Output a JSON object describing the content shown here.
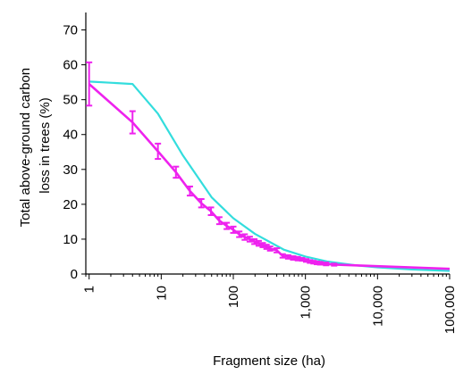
{
  "chart_data": {
    "type": "line",
    "xlabel": "Fragment size (ha)",
    "ylabel_lines": [
      "Total above-ground carbon",
      "loss in trees (%)"
    ],
    "x_scale": "log",
    "xlim": [
      0.9,
      100000
    ],
    "ylim": [
      0,
      75
    ],
    "x_ticks": [
      {
        "value": 1,
        "label": "1"
      },
      {
        "value": 10,
        "label": "10"
      },
      {
        "value": 100,
        "label": "100"
      },
      {
        "value": 1000,
        "label": "1,000"
      },
      {
        "value": 10000,
        "label": "10,000"
      },
      {
        "value": 100000,
        "label": "100,000"
      }
    ],
    "y_ticks": [
      0,
      10,
      20,
      30,
      40,
      50,
      60,
      70
    ],
    "grid": false,
    "series": [
      {
        "color": "#33dddd",
        "x": [
          1,
          4,
          9,
          20,
          50,
          100,
          200,
          500,
          1000,
          2000,
          5000,
          10000,
          30000,
          100000
        ],
        "y": [
          55.2,
          54.5,
          46,
          34,
          22,
          16,
          11.5,
          7,
          5,
          3.6,
          2.5,
          1.9,
          1.3,
          0.9
        ]
      },
      {
        "color": "#ee22ee",
        "x": [
          1,
          4,
          9,
          16,
          25,
          36,
          49,
          64,
          81,
          100,
          121,
          144,
          169,
          196,
          225,
          256,
          289,
          324,
          400,
          484,
          576,
          676,
          784,
          900,
          1024,
          1156,
          1296,
          1444,
          1600,
          1936,
          2500,
          100000
        ],
        "y": [
          54.5,
          43.5,
          35.2,
          29.2,
          23.8,
          20.3,
          18,
          15.3,
          13.8,
          12.7,
          11.4,
          10.6,
          10,
          9.3,
          8.8,
          8.3,
          7.8,
          7.3,
          6.8,
          5.2,
          4.9,
          4.6,
          4.4,
          4.2,
          3.9,
          3.6,
          3.4,
          3.2,
          3.1,
          2.9,
          2.7,
          1.5
        ],
        "err": [
          6.2,
          3.2,
          2.2,
          1.6,
          1.3,
          1.2,
          1.1,
          1,
          0.9,
          0.9,
          0.8,
          0.8,
          0.7,
          0.7,
          0.7,
          0.6,
          0.6,
          0.6,
          0.6,
          0.5,
          0.5,
          0.5,
          0.5,
          0.4,
          0.4,
          0.4,
          0.4,
          0.4,
          0.4,
          0.4,
          0.3,
          0
        ]
      }
    ]
  }
}
